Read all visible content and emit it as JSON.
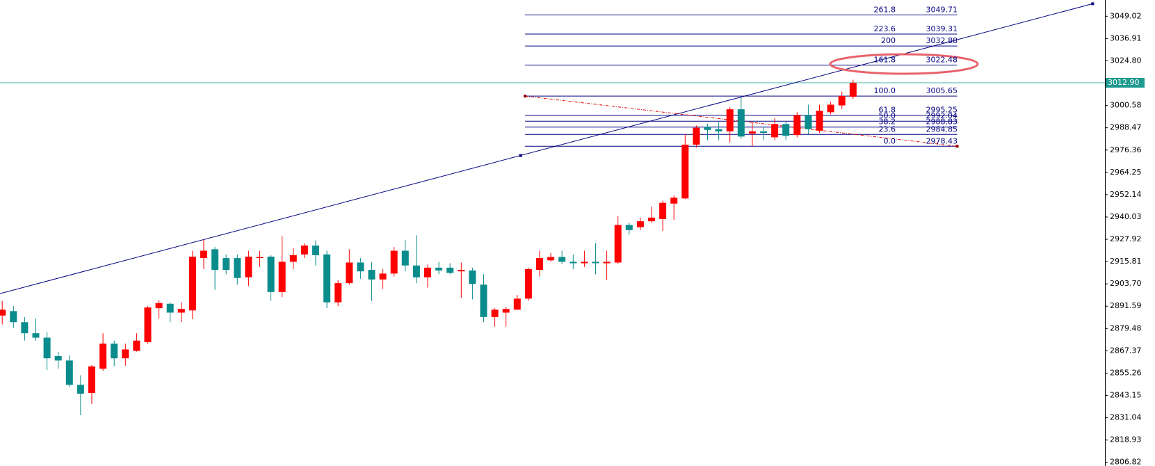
{
  "chart_data": {
    "type": "candlestick",
    "up_color": "#ff0000",
    "down_color": "#0a8c8c",
    "open": [
      2886.5,
      2888.9,
      2882.9,
      2876.9,
      2874.5,
      2864.5,
      2862.1,
      2848.9,
      2844.5,
      2857.7,
      2871.3,
      2863.3,
      2867.3,
      2872.1,
      2890.5,
      2892.9,
      2888.1,
      2889.3,
      2917.7,
      2922.5,
      2917.7,
      2917.7,
      2907.3,
      2917.7,
      2918.5,
      2899.3,
      2915.7,
      2919.7,
      2924.5,
      2919.7,
      2893.7,
      2904.1,
      2915.3,
      2911.3,
      2906.1,
      2909.3,
      2921.7,
      2913.7,
      2907.3,
      2912.5,
      2912.5,
      2910.5,
      2911.0,
      2903.3,
      2885.7,
      2888.1,
      2889.7,
      2895.7,
      2911.3,
      2916.5,
      2918.3,
      2915.7,
      2914.9,
      2915.7,
      2914.9,
      2915.3,
      2935.7,
      2934.5,
      2937.7,
      2938.9,
      2947.3,
      2950.1,
      2979.3,
      2988.9,
      2987.7,
      2986.5,
      2998.5,
      2985.3,
      2986.5,
      2983.3,
      2990.5,
      2984.5,
      2995.3,
      2986.9,
      2996.9,
      3000.6,
      3005.3
    ],
    "high": [
      2894.5,
      2891.7,
      2885.7,
      2884.9,
      2877.7,
      2866.9,
      2864.9,
      2854.1,
      2859.7,
      2876.9,
      2872.9,
      2871.3,
      2876.9,
      2891.7,
      2894.9,
      2893.7,
      2893.7,
      2921.7,
      2927.7,
      2923.7,
      2919.7,
      2919.7,
      2921.7,
      2921.7,
      2919.3,
      2929.7,
      2923.3,
      2925.7,
      2927.3,
      2921.7,
      2905.7,
      2922.5,
      2917.7,
      2915.7,
      2911.7,
      2923.7,
      2927.7,
      2930.1,
      2914.1,
      2915.7,
      2914.9,
      2915.3,
      2912.5,
      2908.9,
      2890.5,
      2891.3,
      2897.7,
      2912.5,
      2921.7,
      2920.5,
      2921.7,
      2919.7,
      2921.7,
      2925.7,
      2921.7,
      2940.5,
      2936.9,
      2939.7,
      2945.7,
      2948.9,
      2951.7,
      2984.9,
      2989.7,
      2990.5,
      2991.7,
      2999.7,
      3005.0,
      2991.7,
      2988.9,
      2993.7,
      2991.7,
      2996.9,
      3001.0,
      3001.0,
      3002.6,
      3008.1,
      3014.6
    ],
    "low": [
      2881.7,
      2879.7,
      2872.9,
      2872.9,
      2856.9,
      2857.7,
      2847.7,
      2832.4,
      2838.5,
      2856.5,
      2859.0,
      2859.3,
      2866.9,
      2871.3,
      2884.9,
      2882.9,
      2882.9,
      2884.5,
      2911.7,
      2900.5,
      2908.9,
      2903.3,
      2902.5,
      2912.9,
      2894.5,
      2896.5,
      2911.7,
      2917.7,
      2913.7,
      2890.5,
      2891.7,
      2903.3,
      2906.5,
      2894.5,
      2900.9,
      2907.7,
      2910.5,
      2904.1,
      2901.7,
      2908.9,
      2908.9,
      2896.1,
      2895.3,
      2882.9,
      2880.5,
      2880.5,
      2889.7,
      2894.5,
      2907.7,
      2915.7,
      2914.5,
      2911.7,
      2912.9,
      2908.9,
      2905.7,
      2914.5,
      2930.5,
      2932.9,
      2936.9,
      2932.5,
      2938.5,
      2949.7,
      2977.7,
      2981.7,
      2981.7,
      2980.5,
      2982.5,
      2978.5,
      2981.7,
      2981.7,
      2981.7,
      2983.3,
      2985.0,
      2985.7,
      2995.7,
      2998.6,
      3004.1
    ],
    "close": [
      2889.7,
      2882.9,
      2876.9,
      2874.5,
      2863.3,
      2862.1,
      2848.9,
      2844.1,
      2858.9,
      2871.3,
      2863.3,
      2868.1,
      2872.9,
      2890.9,
      2893.3,
      2888.1,
      2890.1,
      2918.5,
      2921.7,
      2911.3,
      2911.3,
      2906.9,
      2918.5,
      2918.3,
      2899.3,
      2915.7,
      2919.3,
      2924.5,
      2919.3,
      2893.7,
      2904.1,
      2915.3,
      2910.5,
      2906.1,
      2909.3,
      2921.7,
      2913.7,
      2907.3,
      2912.5,
      2911.0,
      2909.7,
      2911.3,
      2903.7,
      2885.7,
      2889.7,
      2890.1,
      2895.7,
      2911.7,
      2917.7,
      2918.3,
      2915.7,
      2914.9,
      2915.7,
      2914.9,
      2915.7,
      2935.7,
      2932.9,
      2937.7,
      2939.7,
      2947.7,
      2950.5,
      2979.3,
      2988.5,
      2987.3,
      2986.5,
      2998.5,
      2983.7,
      2986.5,
      2985.7,
      2990.5,
      2984.1,
      2995.3,
      2987.7,
      2997.7,
      3001.0,
      3005.7,
      3012.9
    ],
    "ylim": [
      2804.83,
      3057.83
    ],
    "yticks": [
      3049.02,
      3036.91,
      {
        "value": 3024.8,
        "label": "3024.80"
      },
      3000.58,
      2988.47,
      2976.36,
      2964.25,
      2952.14,
      2940.03,
      2927.92,
      2915.81,
      {
        "value": 2903.7,
        "label": "2903.70"
      },
      2891.59,
      2879.48,
      2867.37,
      2855.26,
      2843.15,
      2831.04,
      2818.93,
      2806.82
    ],
    "last_price": {
      "value": 3012.9,
      "label": "3012.90"
    },
    "trendline": {
      "x": [
        46.3,
        97.4
      ],
      "y": [
        2973.4,
        3055.8
      ],
      "color": "#000080"
    },
    "fibonacci": {
      "x": [
        46.7,
        85.3
      ],
      "color": "#000080",
      "levels": [
        {
          "level": "261.8",
          "price": 3049.71
        },
        {
          "level": "223.6",
          "price": 3039.31
        },
        {
          "level": "200",
          "price": 3032.88
        },
        {
          "level": "161.8",
          "price": 3022.48
        },
        {
          "level": "100.0",
          "price": 3005.65
        },
        {
          "level": "61.8",
          "price": 2995.25
        },
        {
          "level": "50.0",
          "price": 2992.04
        },
        {
          "level": "38.2",
          "price": 2988.83
        },
        {
          "level": "23.6",
          "price": 2984.85
        },
        {
          "level": "0.0",
          "price": 2978.43
        }
      ]
    }
  }
}
